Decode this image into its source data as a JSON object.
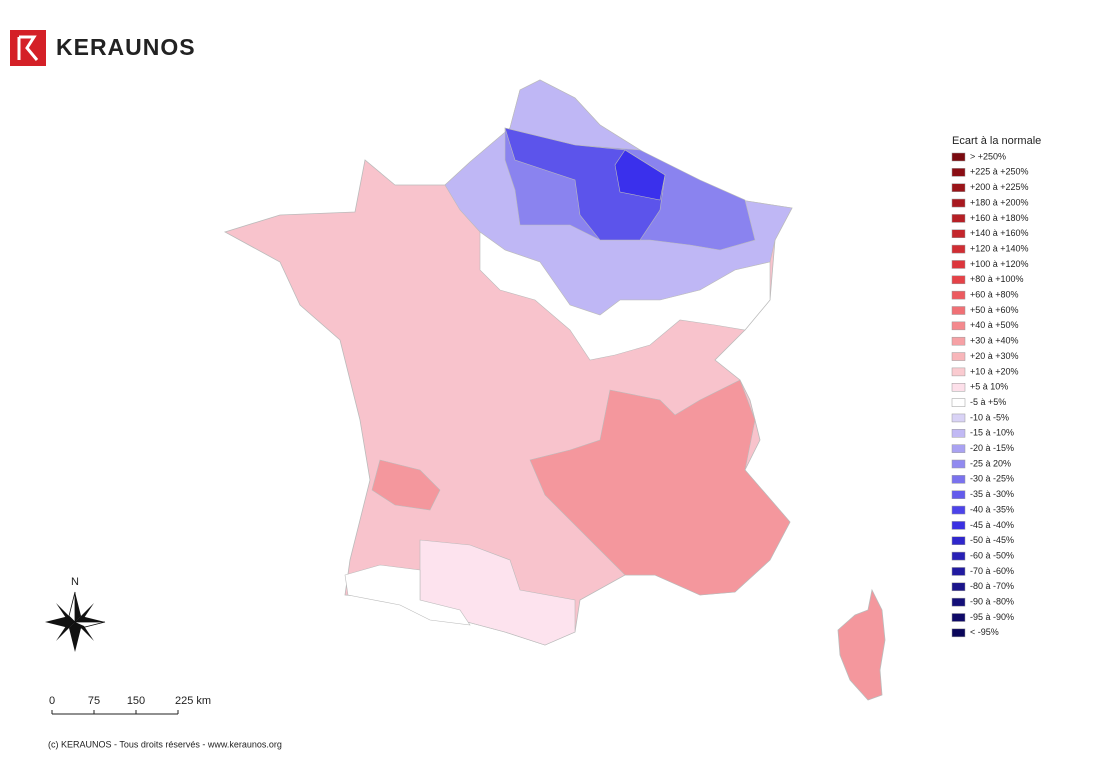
{
  "logo": {
    "text": "KERAUNOS"
  },
  "legend": {
    "title": "Ecart à la normale",
    "items": [
      {
        "label": "> +250%",
        "color": "#7a0a0f"
      },
      {
        "label": "+225 à +250%",
        "color": "#8a0e14"
      },
      {
        "label": "+200 à +225%",
        "color": "#9a1419"
      },
      {
        "label": "+180 à +200%",
        "color": "#a8191f"
      },
      {
        "label": "+160 à +180%",
        "color": "#b61f25"
      },
      {
        "label": "+140 à +160%",
        "color": "#c4262c"
      },
      {
        "label": "+120 à +140%",
        "color": "#d02d33"
      },
      {
        "label": "+100 à +120%",
        "color": "#dc363c"
      },
      {
        "label": "+80 à +100%",
        "color": "#e54248"
      },
      {
        "label": "+60 à +80%",
        "color": "#ec5a5f"
      },
      {
        "label": "+50 à +60%",
        "color": "#f07075"
      },
      {
        "label": "+40 à +50%",
        "color": "#f4898d"
      },
      {
        "label": "+30 à +40%",
        "color": "#f6a1a5"
      },
      {
        "label": "+20 à +30%",
        "color": "#f8b6ba"
      },
      {
        "label": "+10 à +20%",
        "color": "#facbd0"
      },
      {
        "label": "+5 à 10%",
        "color": "#fde0ea"
      },
      {
        "label": "-5 à +5%",
        "color": "#ffffff"
      },
      {
        "label": "-10 à -5%",
        "color": "#d9d3f6"
      },
      {
        "label": "-15 à -10%",
        "color": "#c1b9f4"
      },
      {
        "label": "-20 à -15%",
        "color": "#a9a2f2"
      },
      {
        "label": "-25 à 20%",
        "color": "#918af0"
      },
      {
        "label": "-30 à -25%",
        "color": "#7a72ee"
      },
      {
        "label": "-35 à -30%",
        "color": "#635bec"
      },
      {
        "label": "-40 à -35%",
        "color": "#4c43ea"
      },
      {
        "label": "-45 à -40%",
        "color": "#3a30e2"
      },
      {
        "label": "-50 à -45%",
        "color": "#2f26cc"
      },
      {
        "label": "-60 à -50%",
        "color": "#2820b6"
      },
      {
        "label": "-70 à -60%",
        "color": "#211aa0"
      },
      {
        "label": "-80 à -70%",
        "color": "#1a148a"
      },
      {
        "label": "-90 à -80%",
        "color": "#140f78"
      },
      {
        "label": "-95 à -90%",
        "color": "#0f0a68"
      },
      {
        "label": "< -95%",
        "color": "#0a065a"
      }
    ]
  },
  "compass": {
    "label": "N"
  },
  "scale": {
    "labels": [
      "0",
      "75",
      "150",
      "225 km"
    ]
  },
  "footer": "(c) KERAUNOS - Tous droits réservés - www.keraunos.org"
}
